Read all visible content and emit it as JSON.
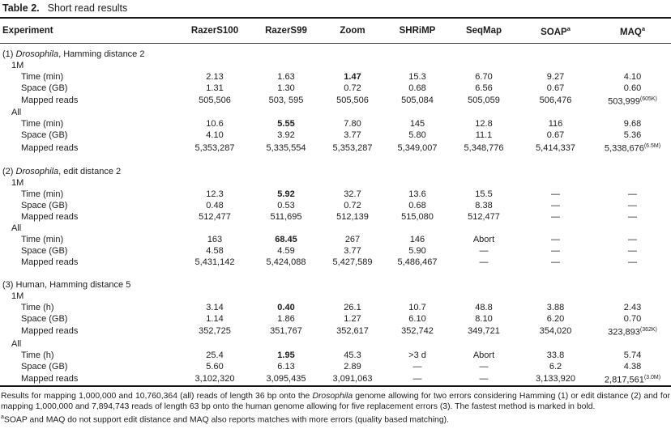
{
  "page": {
    "background": "#ffffff",
    "text_color": "#1c1c1c"
  },
  "caption": {
    "label": "Table 2.",
    "text": "Short read results"
  },
  "table": {
    "columns": [
      {
        "label": "Experiment",
        "sup": ""
      },
      {
        "label": "RazerS100",
        "sup": ""
      },
      {
        "label": "RazerS99",
        "sup": ""
      },
      {
        "label": "Zoom",
        "sup": ""
      },
      {
        "label": "SHRiMP",
        "sup": ""
      },
      {
        "label": "SeqMap",
        "sup": ""
      },
      {
        "label": "SOAP",
        "sup": "a"
      },
      {
        "label": "MAQ",
        "sup": "a"
      }
    ],
    "sections": [
      {
        "title": [
          {
            "t": "(1) "
          },
          {
            "t": "Drosophila",
            "i": true
          },
          {
            "t": ", Hamming distance 2"
          }
        ],
        "groups": [
          {
            "name": "1M",
            "rows": [
              {
                "label": "Time (min)",
                "values": [
                  "2.13",
                  "1.63",
                  {
                    "t": "1.47",
                    "b": true
                  },
                  "15.3",
                  "6.70",
                  "9.27",
                  "4.10"
                ]
              },
              {
                "label": "Space (GB)",
                "values": [
                  "1.31",
                  "1.30",
                  "0.72",
                  "0.68",
                  "6.56",
                  "0.67",
                  "0.60"
                ]
              },
              {
                "label": "Mapped reads",
                "values": [
                  "505,506",
                  "503, 595",
                  "505,506",
                  "505,084",
                  "505,059",
                  "506,476",
                  {
                    "t": "503,999",
                    "sup": "(605K)"
                  }
                ]
              }
            ]
          },
          {
            "name": "All",
            "rows": [
              {
                "label": "Time (min)",
                "values": [
                  "10.6",
                  {
                    "t": "5.55",
                    "b": true
                  },
                  "7.80",
                  "145",
                  "12.8",
                  "116",
                  "9.68"
                ]
              },
              {
                "label": "Space (GB)",
                "values": [
                  "4.10",
                  "3.92",
                  "3.77",
                  "5.80",
                  "11.1",
                  "0.67",
                  "5.36"
                ]
              },
              {
                "label": "Mapped reads",
                "values": [
                  "5,353,287",
                  "5,335,554",
                  "5,353,287",
                  "5,349,007",
                  "5,348,776",
                  "5,414,337",
                  {
                    "t": "5,338,676",
                    "sup": "(6.5M)"
                  }
                ]
              }
            ]
          }
        ]
      },
      {
        "title": [
          {
            "t": "(2) "
          },
          {
            "t": "Drosophila",
            "i": true
          },
          {
            "t": ", edit distance 2"
          }
        ],
        "groups": [
          {
            "name": "1M",
            "rows": [
              {
                "label": "Time (min)",
                "values": [
                  "12.3",
                  {
                    "t": "5.92",
                    "b": true
                  },
                  "32.7",
                  "13.6",
                  "15.5",
                  "—",
                  "—"
                ]
              },
              {
                "label": "Space (GB)",
                "values": [
                  "0.48",
                  "0.53",
                  "0.72",
                  "0.68",
                  "8.38",
                  "—",
                  "—"
                ]
              },
              {
                "label": "Mapped reads",
                "values": [
                  "512,477",
                  "511,695",
                  "512,139",
                  "515,080",
                  "512,477",
                  "—",
                  "—"
                ]
              }
            ]
          },
          {
            "name": "All",
            "rows": [
              {
                "label": "Time (min)",
                "values": [
                  "163",
                  {
                    "t": "68.45",
                    "b": true
                  },
                  "267",
                  "146",
                  "Abort",
                  "—",
                  "—"
                ]
              },
              {
                "label": "Space (GB)",
                "values": [
                  "4.58",
                  "4.59",
                  "3.77",
                  "5.90",
                  "—",
                  "—",
                  "—"
                ]
              },
              {
                "label": "Mapped reads",
                "values": [
                  "5,431,142",
                  "5,424,088",
                  "5,427,589",
                  "5,486,467",
                  "—",
                  "—",
                  "—"
                ]
              }
            ]
          }
        ]
      },
      {
        "title": [
          {
            "t": "(3) Human, Hamming distance 5"
          }
        ],
        "groups": [
          {
            "name": "1M",
            "rows": [
              {
                "label": "Time (h)",
                "values": [
                  "3.14",
                  {
                    "t": "0.40",
                    "b": true
                  },
                  "26.1",
                  "10.7",
                  "48.8",
                  "3.88",
                  "2.43"
                ]
              },
              {
                "label": "Space (GB)",
                "values": [
                  "1.14",
                  "1.86",
                  "1.27",
                  "6.10",
                  "8.10",
                  "6.20",
                  "0.70"
                ]
              },
              {
                "label": "Mapped reads",
                "values": [
                  "352,725",
                  "351,767",
                  "352,617",
                  "352,742",
                  "349,721",
                  "354,020",
                  {
                    "t": "323,893",
                    "sup": "(362K)"
                  }
                ]
              }
            ]
          },
          {
            "name": "All",
            "rows": [
              {
                "label": "Time (h)",
                "values": [
                  "25.4",
                  {
                    "t": "1.95",
                    "b": true
                  },
                  "45.3",
                  ">3 d",
                  "Abort",
                  "33.8",
                  "5.74"
                ]
              },
              {
                "label": "Space (GB)",
                "values": [
                  "5.60",
                  "6.13",
                  "2.89",
                  "—",
                  "—",
                  "6.2",
                  "4.38"
                ]
              },
              {
                "label": "Mapped reads",
                "values": [
                  "3,102,320",
                  "3,095,435",
                  "3,091,063",
                  "—",
                  "—",
                  "3,133,920",
                  {
                    "t": "2,817,561",
                    "sup": "(3.0M)"
                  }
                ]
              }
            ]
          }
        ]
      }
    ]
  },
  "footnotes": {
    "main": [
      {
        "t": "Results for mapping 1,000,000 and 10,760,364 (all) reads of length 36 bp onto the "
      },
      {
        "t": "Drosophila",
        "i": true
      },
      {
        "t": " genome allowing for two errors considering Hamming (1) or edit distance (2) and for mapping 1,000,000 and 7,894,743 reads of length 63 bp onto the human genome allowing for five replacement errors (3). The fastest method is marked in bold."
      }
    ],
    "note_a": {
      "sup": "a",
      "text": "SOAP and MAQ do not support edit distance and MAQ also reports matches with more errors (quality based matching)."
    }
  }
}
